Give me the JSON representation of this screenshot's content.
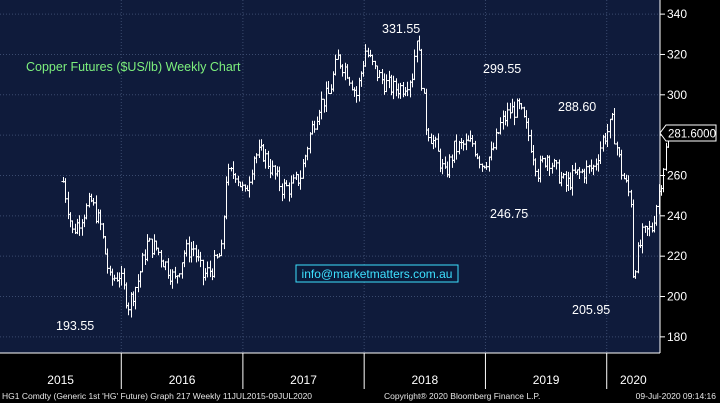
{
  "chart_data": {
    "type": "ohlc",
    "title": "Copper Futures ($US/lb) Weekly Chart",
    "watermark": "info@marketmatters.com.au",
    "xlabel": "",
    "ylabel": "",
    "ylim": [
      172,
      347
    ],
    "y_ticks": [
      180,
      200,
      220,
      240,
      260,
      280,
      300,
      320,
      340
    ],
    "x_tick_labels": [
      "2015",
      "2016",
      "2017",
      "2018",
      "2019",
      "2020"
    ],
    "last_price_label": "281.6000",
    "grid": true,
    "annotations": [
      "331.55",
      "299.55",
      "288.60",
      "246.75",
      "193.55",
      "205.95"
    ],
    "series": [
      {
        "points": [
          {
            "date": "2015-07-10",
            "close": 257
          },
          {
            "date": "2015-08-07",
            "close": 232
          },
          {
            "date": "2015-09-04",
            "close": 240
          },
          {
            "date": "2015-10-02",
            "close": 247
          },
          {
            "date": "2015-10-30",
            "close": 235
          },
          {
            "date": "2015-11-27",
            "close": 208
          },
          {
            "date": "2015-12-25",
            "close": 211
          },
          {
            "date": "2016-01-22",
            "close": 196
          },
          {
            "date": "2016-02-19",
            "close": 208
          },
          {
            "date": "2016-03-18",
            "close": 226
          },
          {
            "date": "2016-04-15",
            "close": 224
          },
          {
            "date": "2016-05-13",
            "close": 216
          },
          {
            "date": "2016-06-10",
            "close": 208
          },
          {
            "date": "2016-07-08",
            "close": 222
          },
          {
            "date": "2016-08-05",
            "close": 224
          },
          {
            "date": "2016-09-02",
            "close": 210
          },
          {
            "date": "2016-09-30",
            "close": 214
          },
          {
            "date": "2016-10-28",
            "close": 222
          },
          {
            "date": "2016-11-11",
            "close": 259
          },
          {
            "date": "2016-12-09",
            "close": 262
          },
          {
            "date": "2017-01-06",
            "close": 250
          },
          {
            "date": "2017-02-03",
            "close": 270
          },
          {
            "date": "2017-03-03",
            "close": 271
          },
          {
            "date": "2017-03-31",
            "close": 262
          },
          {
            "date": "2017-04-28",
            "close": 254
          },
          {
            "date": "2017-05-26",
            "close": 254
          },
          {
            "date": "2017-06-23",
            "close": 260
          },
          {
            "date": "2017-07-21",
            "close": 280
          },
          {
            "date": "2017-08-18",
            "close": 295
          },
          {
            "date": "2017-09-15",
            "close": 300
          },
          {
            "date": "2017-10-13",
            "close": 318
          },
          {
            "date": "2017-11-10",
            "close": 312
          },
          {
            "date": "2017-12-08",
            "close": 300
          },
          {
            "date": "2018-01-05",
            "close": 322
          },
          {
            "date": "2018-02-02",
            "close": 312
          },
          {
            "date": "2018-03-02",
            "close": 306
          },
          {
            "date": "2018-03-30",
            "close": 303
          },
          {
            "date": "2018-04-27",
            "close": 304
          },
          {
            "date": "2018-05-25",
            "close": 310
          },
          {
            "date": "2018-06-08",
            "close": 330
          },
          {
            "date": "2018-07-06",
            "close": 285
          },
          {
            "date": "2018-08-03",
            "close": 274
          },
          {
            "date": "2018-08-31",
            "close": 260
          },
          {
            "date": "2018-09-28",
            "close": 273
          },
          {
            "date": "2018-10-26",
            "close": 275
          },
          {
            "date": "2018-11-23",
            "close": 276
          },
          {
            "date": "2018-12-21",
            "close": 266
          },
          {
            "date": "2019-01-18",
            "close": 270
          },
          {
            "date": "2019-02-15",
            "close": 285
          },
          {
            "date": "2019-03-15",
            "close": 292
          },
          {
            "date": "2019-04-12",
            "close": 293
          },
          {
            "date": "2019-05-10",
            "close": 280
          },
          {
            "date": "2019-06-07",
            "close": 262
          },
          {
            "date": "2019-07-05",
            "close": 270
          },
          {
            "date": "2019-08-02",
            "close": 262
          },
          {
            "date": "2019-08-30",
            "close": 255
          },
          {
            "date": "2019-09-27",
            "close": 260
          },
          {
            "date": "2019-10-25",
            "close": 262
          },
          {
            "date": "2019-11-22",
            "close": 264
          },
          {
            "date": "2019-12-20",
            "close": 278
          },
          {
            "date": "2020-01-17",
            "close": 286
          },
          {
            "date": "2020-02-14",
            "close": 262
          },
          {
            "date": "2020-03-13",
            "close": 248
          },
          {
            "date": "2020-03-20",
            "close": 212
          },
          {
            "date": "2020-04-17",
            "close": 230
          },
          {
            "date": "2020-05-15",
            "close": 234
          },
          {
            "date": "2020-06-12",
            "close": 258
          },
          {
            "date": "2020-07-03",
            "close": 280
          }
        ]
      }
    ]
  },
  "footer": {
    "left": "HG1 Comdty (Generic 1st 'HG' Future) Graph 217  Weekly 11JUL2015-09JUL2020",
    "copyright": "Copyright® 2020 Bloomberg Finance L.P.",
    "timestamp": "09-Jul-2020 09:14:16"
  },
  "colors": {
    "background": "#000000",
    "panel": "#0f1b3b",
    "bars": "#ffffff",
    "title": "#7df07d",
    "watermark": "#3de0ff"
  }
}
